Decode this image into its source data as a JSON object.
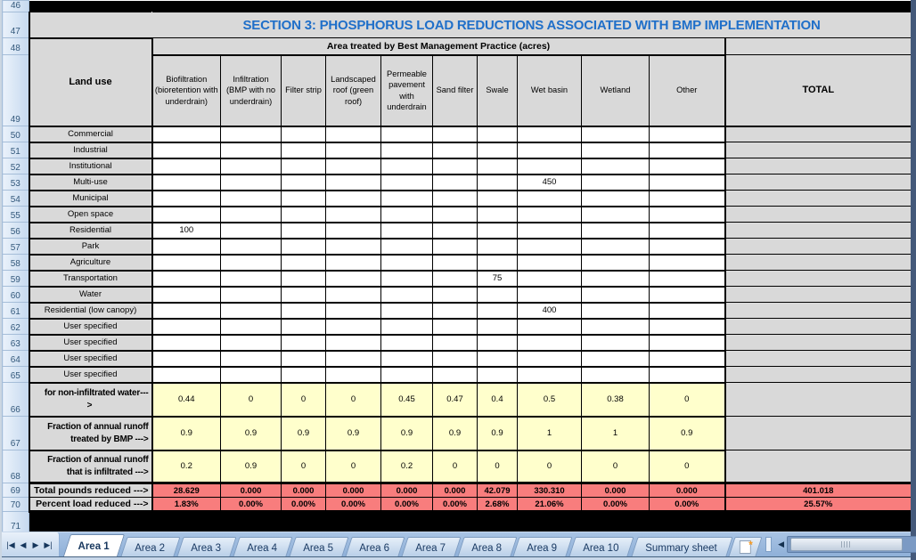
{
  "sheet": {
    "title": "SECTION 3: PHOSPHORUS LOAD REDUCTIONS ASSOCIATED WITH BMP IMPLEMENTATION",
    "span_header": "Area treated by Best Management Practice (acres)",
    "land_use_header": "Land use",
    "total_header": "TOTAL",
    "top_row_num": "46",
    "title_row_num": "47",
    "span_row_num": "48",
    "colhdr_row_num": "49",
    "bottom_row_num": "71",
    "bmp_columns": [
      "Biofiltration (bioretention with underdrain)",
      "Infiltration (BMP with no underdrain)",
      "Filter strip",
      "Landscaped roof (green roof)",
      "Permeable pavement with underdrain",
      "Sand filter",
      "Swale",
      "Wet basin",
      "Wetland",
      "Other"
    ],
    "rows": [
      {
        "num": "50",
        "label": "Commercial",
        "values": [
          "",
          "",
          "",
          "",
          "",
          "",
          "",
          "",
          "",
          ""
        ],
        "total": ""
      },
      {
        "num": "51",
        "label": "Industrial",
        "values": [
          "",
          "",
          "",
          "",
          "",
          "",
          "",
          "",
          "",
          ""
        ],
        "total": ""
      },
      {
        "num": "52",
        "label": "Institutional",
        "values": [
          "",
          "",
          "",
          "",
          "",
          "",
          "",
          "",
          "",
          ""
        ],
        "total": ""
      },
      {
        "num": "53",
        "label": "Multi-use",
        "values": [
          "",
          "",
          "",
          "",
          "",
          "",
          "",
          "450",
          "",
          ""
        ],
        "total": ""
      },
      {
        "num": "54",
        "label": "Municipal",
        "values": [
          "",
          "",
          "",
          "",
          "",
          "",
          "",
          "",
          "",
          ""
        ],
        "total": ""
      },
      {
        "num": "55",
        "label": "Open space",
        "values": [
          "",
          "",
          "",
          "",
          "",
          "",
          "",
          "",
          "",
          ""
        ],
        "total": ""
      },
      {
        "num": "56",
        "label": "Residential",
        "values": [
          "100",
          "",
          "",
          "",
          "",
          "",
          "",
          "",
          "",
          ""
        ],
        "total": ""
      },
      {
        "num": "57",
        "label": "Park",
        "values": [
          "",
          "",
          "",
          "",
          "",
          "",
          "",
          "",
          "",
          ""
        ],
        "total": ""
      },
      {
        "num": "58",
        "label": "Agriculture",
        "values": [
          "",
          "",
          "",
          "",
          "",
          "",
          "",
          "",
          "",
          ""
        ],
        "total": ""
      },
      {
        "num": "59",
        "label": "Transportation",
        "values": [
          "",
          "",
          "",
          "",
          "",
          "",
          "75",
          "",
          "",
          ""
        ],
        "total": ""
      },
      {
        "num": "60",
        "label": "Water",
        "values": [
          "",
          "",
          "",
          "",
          "",
          "",
          "",
          "",
          "",
          ""
        ],
        "total": ""
      },
      {
        "num": "61",
        "label": "Residential (low canopy)",
        "values": [
          "",
          "",
          "",
          "",
          "",
          "",
          "",
          "400",
          "",
          ""
        ],
        "total": ""
      },
      {
        "num": "62",
        "label": "User specified",
        "values": [
          "",
          "",
          "",
          "",
          "",
          "",
          "",
          "",
          "",
          ""
        ],
        "total": ""
      },
      {
        "num": "63",
        "label": "User specified",
        "values": [
          "",
          "",
          "",
          "",
          "",
          "",
          "",
          "",
          "",
          ""
        ],
        "total": ""
      },
      {
        "num": "64",
        "label": "User specified",
        "values": [
          "",
          "",
          "",
          "",
          "",
          "",
          "",
          "",
          "",
          ""
        ],
        "total": ""
      },
      {
        "num": "65",
        "label": "User specified",
        "values": [
          "",
          "",
          "",
          "",
          "",
          "",
          "",
          "",
          "",
          ""
        ],
        "total": ""
      }
    ],
    "factor_rows": [
      {
        "num": "66",
        "label_lines": [
          "for non-infiltrated water---",
          ">"
        ],
        "line2_center": true,
        "values": [
          "0.44",
          "0",
          "0",
          "0",
          "0.45",
          "0.47",
          "0.4",
          "0.5",
          "0.38",
          "0"
        ],
        "total": ""
      },
      {
        "num": "67",
        "label_lines": [
          "Fraction of annual runoff",
          "treated by BMP --->"
        ],
        "line2_center": false,
        "values": [
          "0.9",
          "0.9",
          "0.9",
          "0.9",
          "0.9",
          "0.9",
          "0.9",
          "1",
          "1",
          "0.9"
        ],
        "total": ""
      },
      {
        "num": "68",
        "label_lines": [
          "Fraction of annual runoff",
          "that is infiltrated --->"
        ],
        "line2_center": false,
        "values": [
          "0.2",
          "0.9",
          "0",
          "0",
          "0.2",
          "0",
          "0",
          "0",
          "0",
          "0"
        ],
        "total": ""
      }
    ],
    "result_rows": [
      {
        "num": "69",
        "label": "Total pounds reduced --->",
        "values": [
          "28.629",
          "0.000",
          "0.000",
          "0.000",
          "0.000",
          "0.000",
          "42.079",
          "330.310",
          "0.000",
          "0.000"
        ],
        "total": "401.018"
      },
      {
        "num": "70",
        "label": "Percent load reduced --->",
        "values": [
          "1.83%",
          "0.00%",
          "0.00%",
          "0.00%",
          "0.00%",
          "0.00%",
          "2.68%",
          "21.06%",
          "0.00%",
          "0.00%"
        ],
        "total": "25.57%"
      }
    ]
  },
  "colors": {
    "title_text": "#1F6FC9",
    "header_fill": "#D9D9D9",
    "input_yellow": "#FFFFCC",
    "result_red": "#F87D7D",
    "tab_text": "#17375E"
  },
  "tabs": {
    "items": [
      "Area 1",
      "Area 2",
      "Area 3",
      "Area 4",
      "Area 5",
      "Area 6",
      "Area 7",
      "Area 8",
      "Area 9",
      "Area 10",
      "Summary sheet"
    ],
    "active": "Area 1"
  },
  "nav_icons": {
    "first": "|◀",
    "prev": "◀",
    "next": "▶",
    "last": "▶|"
  },
  "scrollbar_icons": {
    "left": "◀",
    "right": "▶"
  }
}
